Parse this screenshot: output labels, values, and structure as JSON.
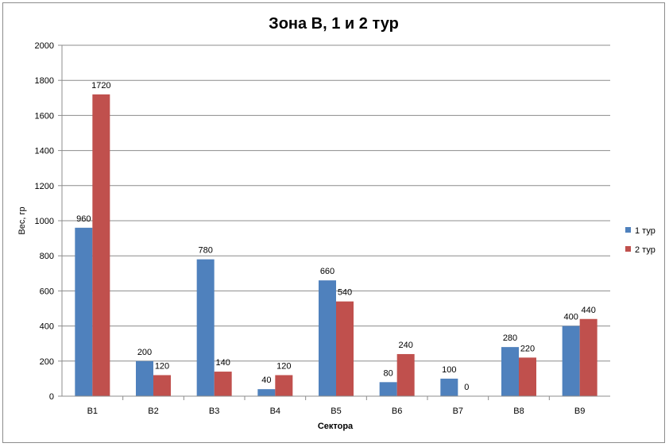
{
  "chart_data": {
    "type": "bar",
    "title": "Зона В, 1 и 2 тур",
    "xlabel": "Сектора",
    "ylabel": "Вес, гр",
    "categories": [
      "В1",
      "В2",
      "В3",
      "В4",
      "В5",
      "В6",
      "В7",
      "В8",
      "В9"
    ],
    "series": [
      {
        "name": "1 тур",
        "color": "#4f81bd",
        "values": [
          960,
          200,
          780,
          40,
          660,
          80,
          100,
          280,
          400
        ]
      },
      {
        "name": "2 тур",
        "color": "#c0504d",
        "values": [
          1720,
          120,
          140,
          120,
          540,
          240,
          0,
          220,
          440
        ]
      }
    ],
    "ylim": [
      0,
      2000
    ],
    "yticks": [
      0,
      200,
      400,
      600,
      800,
      1000,
      1200,
      1400,
      1600,
      1800,
      2000
    ],
    "grid": true,
    "legend_position": "right"
  }
}
